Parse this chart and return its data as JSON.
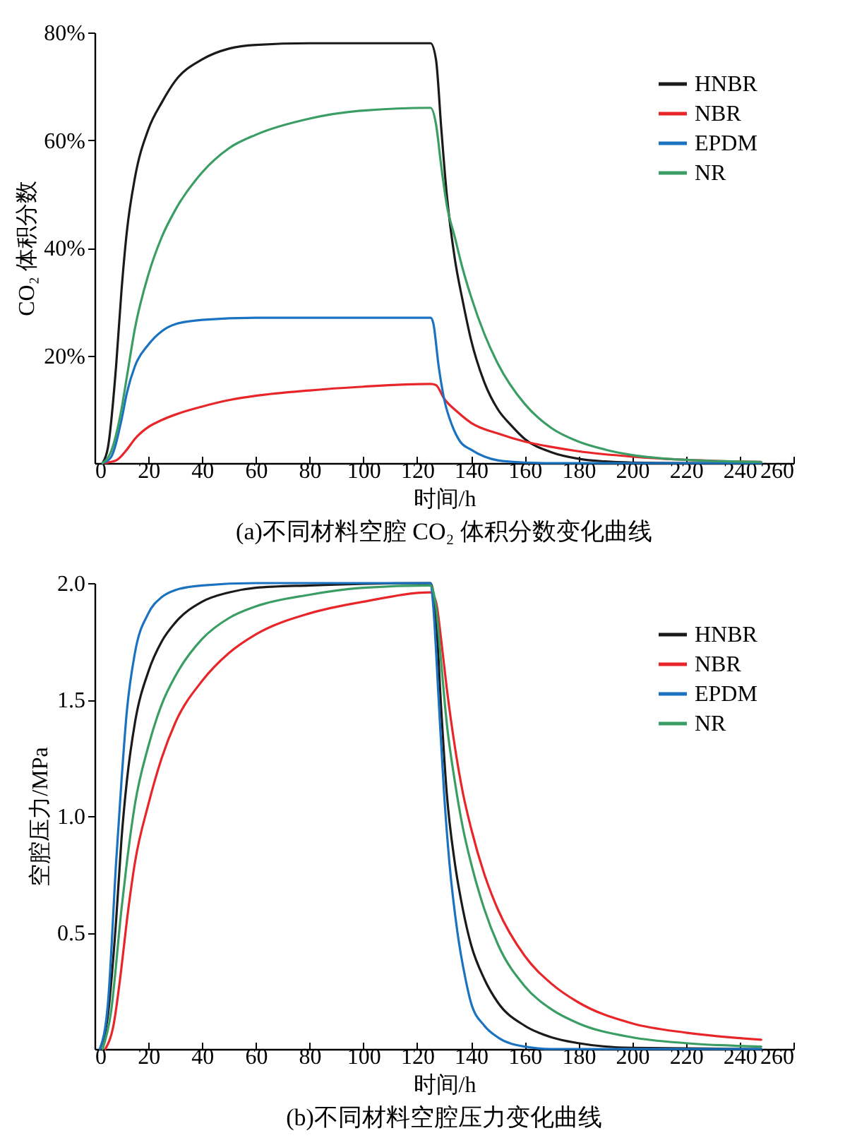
{
  "chart_data": [
    {
      "type": "line",
      "title": "(a)不同材料空腔 CO₂ 体积分数变化曲线",
      "xlabel": "时间/h",
      "ylabel": "CO₂ 体积分数",
      "xlim": [
        0,
        260
      ],
      "xticks": [
        0,
        20,
        40,
        60,
        80,
        100,
        120,
        140,
        160,
        180,
        200,
        220,
        240,
        260
      ],
      "ylim": [
        0,
        80
      ],
      "yticks": [
        {
          "value": 20,
          "label": "20%"
        },
        {
          "value": 40,
          "label": "40%"
        },
        {
          "value": 60,
          "label": "60%"
        },
        {
          "value": 80,
          "label": "80%"
        }
      ],
      "legend": "top right",
      "grid": false,
      "marker": "none",
      "line_style": "solid",
      "series": [
        {
          "name": "HNBR",
          "color": "#1a1a1a",
          "x": [
            3,
            5,
            8,
            10,
            12,
            15,
            20,
            25,
            30,
            40,
            50,
            60,
            80,
            100,
            125,
            127,
            129,
            131,
            134,
            137,
            140,
            145,
            150,
            155,
            160,
            170,
            180,
            190,
            200,
            220,
            248
          ],
          "values": [
            0,
            3,
            18,
            32,
            43,
            53,
            62,
            67,
            71,
            75,
            77,
            77.7,
            78,
            78,
            78,
            75,
            62,
            50,
            38,
            30,
            23,
            15,
            10,
            7,
            4.5,
            2,
            0.8,
            0.3,
            0.1,
            0,
            0
          ]
        },
        {
          "name": "NBR",
          "color": "#e8262a",
          "x": [
            3,
            8,
            12,
            15,
            20,
            25,
            30,
            40,
            50,
            60,
            80,
            100,
            125,
            127,
            130,
            135,
            140,
            150,
            160,
            170,
            180,
            200,
            220,
            248
          ],
          "values": [
            0,
            0.5,
            2.5,
            4.5,
            6.7,
            8,
            9,
            10.5,
            11.7,
            12.5,
            13.5,
            14.2,
            14.7,
            14.5,
            12,
            9.5,
            7.5,
            5.5,
            4,
            3,
            2.2,
            1.2,
            0.6,
            0.2
          ]
        },
        {
          "name": "EPDM",
          "color": "#1a72c0",
          "x": [
            3,
            6,
            10,
            12,
            15,
            20,
            25,
            30,
            40,
            60,
            125,
            126,
            128,
            130,
            133,
            136,
            140,
            145,
            150,
            160,
            170,
            248
          ],
          "values": [
            0,
            1,
            8,
            13,
            18,
            22,
            24.5,
            25.8,
            26.6,
            27,
            27,
            26,
            18,
            12,
            7,
            4,
            2.5,
            1.2,
            0.5,
            0.1,
            0,
            0
          ]
        },
        {
          "name": "NR",
          "color": "#3a9e64",
          "x": [
            3,
            6,
            10,
            12,
            15,
            20,
            25,
            30,
            40,
            50,
            60,
            80,
            100,
            125,
            127,
            129,
            131,
            134,
            137,
            140,
            145,
            150,
            160,
            170,
            180,
            190,
            200,
            220,
            248
          ],
          "values": [
            0,
            2,
            10,
            16,
            25,
            35,
            42,
            47,
            54,
            58.5,
            61,
            64,
            65.5,
            66,
            63,
            55,
            48,
            42,
            36,
            31,
            24,
            18.5,
            11,
            6.5,
            4,
            2.5,
            1.5,
            0.6,
            0.2
          ]
        }
      ]
    },
    {
      "type": "line",
      "title": "(b)不同材料空腔压力变化曲线",
      "xlabel": "时间/h",
      "ylabel": "空腔压力/MPa",
      "xlim": [
        0,
        260
      ],
      "xticks": [
        0,
        20,
        40,
        60,
        80,
        100,
        120,
        140,
        160,
        180,
        200,
        220,
        240,
        260
      ],
      "ylim": [
        0,
        2
      ],
      "yticks": [
        0.5,
        {
          "value": 1,
          "label": "1.0"
        },
        1.5,
        {
          "value": 2,
          "label": "2.0"
        }
      ],
      "legend": "top right",
      "grid": false,
      "marker": "none",
      "line_style": "solid",
      "series": [
        {
          "name": "HNBR",
          "color": "#1a1a1a",
          "x": [
            2,
            5,
            8,
            10,
            12,
            15,
            20,
            25,
            30,
            40,
            50,
            60,
            80,
            125,
            127,
            129,
            131,
            134,
            137,
            140,
            145,
            150,
            160,
            170,
            180,
            200,
            248
          ],
          "values": [
            0,
            0.15,
            0.55,
            0.9,
            1.15,
            1.4,
            1.62,
            1.75,
            1.83,
            1.92,
            1.96,
            1.98,
            1.99,
            2,
            1.85,
            1.45,
            1.1,
            0.8,
            0.6,
            0.45,
            0.3,
            0.2,
            0.1,
            0.05,
            0.025,
            0.005,
            0
          ]
        },
        {
          "name": "NBR",
          "color": "#e8262a",
          "x": [
            4,
            7,
            10,
            12,
            15,
            20,
            25,
            30,
            40,
            50,
            60,
            80,
            100,
            125,
            127,
            129,
            131,
            134,
            137,
            140,
            145,
            150,
            160,
            170,
            180,
            200,
            220,
            248
          ],
          "values": [
            0,
            0.1,
            0.35,
            0.55,
            0.8,
            1.05,
            1.25,
            1.4,
            1.58,
            1.7,
            1.78,
            1.87,
            1.92,
            1.96,
            1.92,
            1.75,
            1.55,
            1.3,
            1.1,
            0.95,
            0.75,
            0.6,
            0.4,
            0.28,
            0.2,
            0.11,
            0.07,
            0.04
          ]
        },
        {
          "name": "EPDM",
          "color": "#1a72c0",
          "x": [
            2,
            5,
            8,
            10,
            12,
            15,
            20,
            25,
            30,
            40,
            60,
            125,
            126,
            128,
            130,
            132,
            135,
            138,
            140,
            145,
            150,
            160,
            170,
            248
          ],
          "values": [
            0,
            0.2,
            0.8,
            1.15,
            1.45,
            1.7,
            1.87,
            1.94,
            1.97,
            1.99,
            2,
            2,
            1.9,
            1.5,
            1.1,
            0.8,
            0.5,
            0.3,
            0.2,
            0.1,
            0.05,
            0.01,
            0,
            0
          ]
        },
        {
          "name": "NR",
          "color": "#3a9e64",
          "x": [
            3,
            6,
            10,
            12,
            15,
            20,
            25,
            30,
            40,
            50,
            60,
            80,
            100,
            125,
            127,
            129,
            131,
            134,
            137,
            140,
            145,
            150,
            160,
            170,
            180,
            200,
            220,
            248
          ],
          "values": [
            0,
            0.15,
            0.6,
            0.8,
            1.05,
            1.3,
            1.48,
            1.6,
            1.76,
            1.85,
            1.9,
            1.95,
            1.98,
            1.99,
            1.9,
            1.65,
            1.4,
            1.15,
            0.95,
            0.8,
            0.6,
            0.45,
            0.27,
            0.17,
            0.11,
            0.05,
            0.025,
            0.01
          ]
        }
      ]
    }
  ]
}
